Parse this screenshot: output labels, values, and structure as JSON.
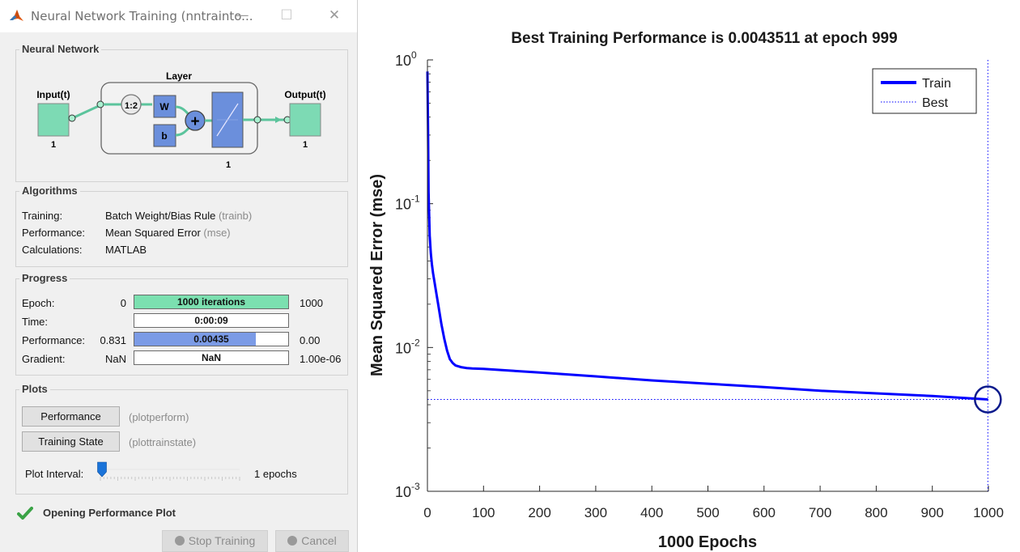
{
  "window": {
    "title": "Neural Network Training (nntrainto...",
    "icon": "matlab-icon",
    "controls": {
      "minimize": "—",
      "maximize": "☐",
      "close": "✕"
    }
  },
  "neural_network": {
    "group_label": "Neural Network",
    "input_label": "Input(t)",
    "input_size": "1",
    "layer_label": "Layer",
    "delay_label": "1:2",
    "weight_label": "W",
    "bias_label": "b",
    "sum_symbol": "+",
    "layer_size": "1",
    "output_label": "Output(t)",
    "output_size": "1"
  },
  "algorithms": {
    "group_label": "Algorithms",
    "rows": [
      {
        "label": "Training:",
        "value": "Batch Weight/Bias Rule",
        "code": "(trainb)"
      },
      {
        "label": "Performance:",
        "value": "Mean Squared Error",
        "code": "(mse)"
      },
      {
        "label": "Calculations:",
        "value": "MATLAB",
        "code": ""
      }
    ]
  },
  "progress": {
    "group_label": "Progress",
    "rows": [
      {
        "label": "Epoch:",
        "start": "0",
        "bar_text": "1000 iterations",
        "end": "1000",
        "fill_fraction": 1.0,
        "fill_color": "#7be0b0"
      },
      {
        "label": "Time:",
        "start": "",
        "bar_text": "0:00:09",
        "end": "",
        "fill_fraction": 0.0,
        "fill_color": "#ffffff"
      },
      {
        "label": "Performance:",
        "start": "0.831",
        "bar_text": "0.00435",
        "end": "0.00",
        "fill_fraction": 0.79,
        "fill_color": "#7b9be6"
      },
      {
        "label": "Gradient:",
        "start": "NaN",
        "bar_text": "NaN",
        "end": "1.00e-06",
        "fill_fraction": 0.0,
        "fill_color": "#ffffff"
      }
    ]
  },
  "plots": {
    "group_label": "Plots",
    "buttons": [
      {
        "label": "Performance",
        "func": "(plotperform)"
      },
      {
        "label": "Training State",
        "func": "(plottrainstate)"
      }
    ],
    "interval_label": "Plot Interval:",
    "interval_value": "1 epochs",
    "interval_fraction": 0.0
  },
  "status": {
    "icon": "checkmark-icon",
    "text": "Opening Performance Plot"
  },
  "footer": {
    "stop_label": "Stop Training",
    "cancel_label": "Cancel"
  },
  "chart_data": {
    "type": "line",
    "title": "Best Training Performance is 0.0043511 at epoch 999",
    "xlabel": "1000 Epochs",
    "ylabel": "Mean Squared Error  (mse)",
    "xlim": [
      0,
      1000
    ],
    "ylim": [
      0.001,
      1
    ],
    "yscale": "log",
    "xticks": [
      0,
      100,
      200,
      300,
      400,
      500,
      600,
      700,
      800,
      900,
      1000
    ],
    "yticks": [
      {
        "value": 0.001,
        "base": "10",
        "exp": "-3"
      },
      {
        "value": 0.01,
        "base": "10",
        "exp": "-2"
      },
      {
        "value": 0.1,
        "base": "10",
        "exp": "-1"
      },
      {
        "value": 1,
        "base": "10",
        "exp": "0"
      }
    ],
    "grid": false,
    "legend_position": "top-right",
    "best_value": 0.0043511,
    "best_epoch": 999,
    "series": [
      {
        "name": "Train",
        "color": "#0000ff",
        "x": [
          0,
          1,
          2,
          4,
          6,
          8,
          10,
          15,
          20,
          25,
          30,
          35,
          40,
          45,
          50,
          60,
          70,
          80,
          100,
          150,
          200,
          300,
          400,
          500,
          600,
          700,
          800,
          900,
          999
        ],
        "y": [
          0.831,
          0.35,
          0.12,
          0.06,
          0.045,
          0.038,
          0.033,
          0.025,
          0.019,
          0.0145,
          0.0115,
          0.0095,
          0.0083,
          0.0078,
          0.0075,
          0.0073,
          0.0072,
          0.00715,
          0.0071,
          0.0069,
          0.0067,
          0.0063,
          0.0059,
          0.0056,
          0.0053,
          0.005,
          0.0048,
          0.0046,
          0.0043511
        ]
      },
      {
        "name": "Best",
        "color": "#0000ff"
      }
    ]
  }
}
